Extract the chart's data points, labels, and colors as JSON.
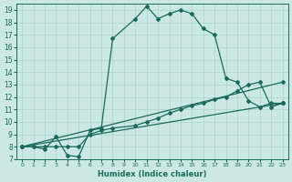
{
  "xlabel": "Humidex (Indice chaleur)",
  "bg_color": "#cce8e4",
  "grid_color": "#aad4cc",
  "line_color": "#1a6b5a",
  "xlim": [
    -0.5,
    23.5
  ],
  "ylim": [
    7,
    19.5
  ],
  "xticks": [
    0,
    1,
    2,
    3,
    4,
    5,
    6,
    7,
    8,
    9,
    10,
    11,
    12,
    13,
    14,
    15,
    16,
    17,
    18,
    19,
    20,
    21,
    22,
    23
  ],
  "yticks": [
    7,
    8,
    9,
    10,
    11,
    12,
    13,
    14,
    15,
    16,
    17,
    18,
    19
  ],
  "series": [
    {
      "x": [
        0,
        1,
        2,
        3,
        4,
        5,
        6,
        7,
        8,
        10,
        11,
        12,
        13,
        14,
        15,
        16,
        17,
        18,
        19,
        20,
        21,
        22,
        23
      ],
      "y": [
        8,
        8,
        7.8,
        8.8,
        7.3,
        7.2,
        9.3,
        9.5,
        16.7,
        18.3,
        19.3,
        18.3,
        18.7,
        19.0,
        18.7,
        17.5,
        17.0,
        13.5,
        13.2,
        11.7,
        11.2,
        11.5,
        11.5
      ]
    },
    {
      "x": [
        0,
        1,
        2,
        3,
        4,
        5,
        6,
        7,
        8,
        10,
        11,
        12,
        13,
        14,
        15,
        16,
        17,
        18,
        19,
        20,
        21,
        22,
        23
      ],
      "y": [
        8,
        8,
        8,
        8,
        8,
        8,
        9.0,
        9.3,
        9.5,
        9.7,
        10.0,
        10.3,
        10.7,
        11.0,
        11.3,
        11.5,
        11.8,
        12.0,
        12.5,
        13.0,
        13.2,
        11.2,
        11.5
      ]
    },
    {
      "x": [
        0,
        23
      ],
      "y": [
        8,
        11.5
      ]
    },
    {
      "x": [
        0,
        23
      ],
      "y": [
        8,
        13.2
      ]
    }
  ]
}
